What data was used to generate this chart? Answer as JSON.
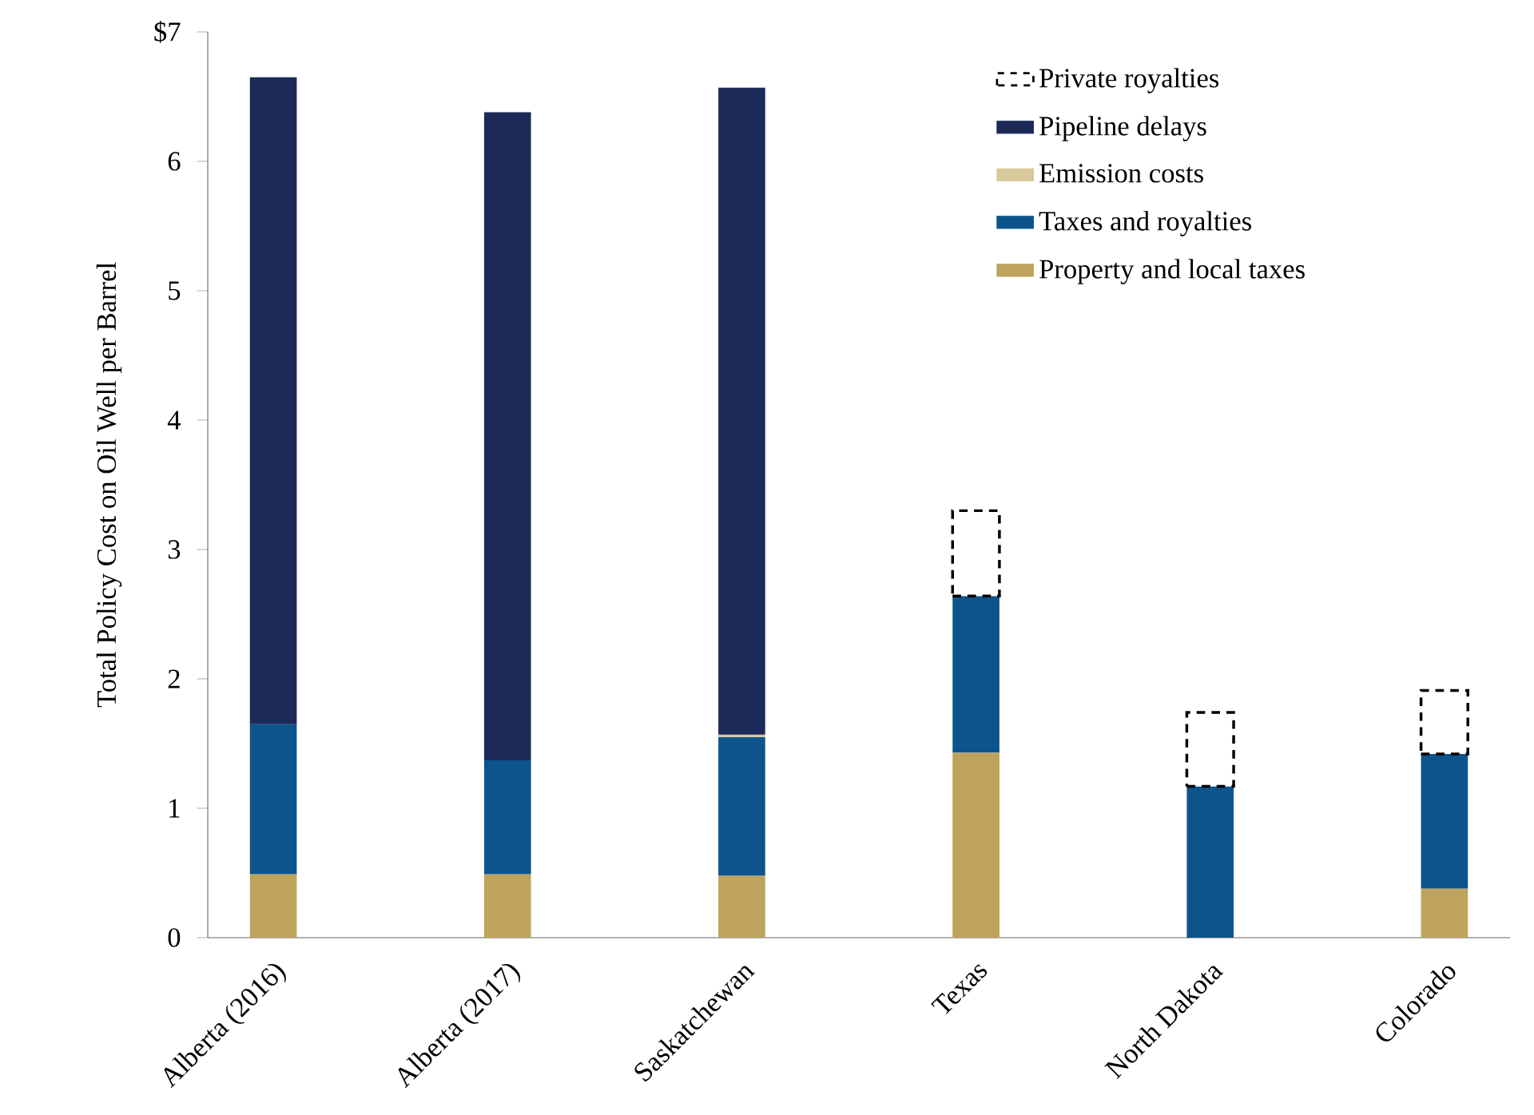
{
  "chart_data": {
    "type": "bar",
    "stacked": true,
    "ylabel": "Total Policy Cost on Oil Well per Barrel",
    "categories": [
      "Alberta (2016)",
      "Alberta (2017)",
      "Saskatchewan",
      "Texas",
      "North Dakota",
      "Colorado"
    ],
    "series": [
      {
        "name": "Property and local taxes",
        "color": "#bea35c",
        "values": [
          0.49,
          0.49,
          0.48,
          1.43,
          null,
          0.38
        ]
      },
      {
        "name": "Taxes and royalties",
        "color": "#0d548c",
        "values": [
          1.16,
          0.88,
          1.07,
          1.21,
          1.17,
          1.04
        ]
      },
      {
        "name": "Emission costs",
        "color": "#d8c99a",
        "values": [
          null,
          null,
          0.02,
          null,
          null,
          null
        ]
      },
      {
        "name": "Pipeline delays",
        "color": "#1b2a58",
        "values": [
          5.0,
          5.01,
          5.0,
          null,
          null,
          null
        ]
      },
      {
        "name": "Private royalties",
        "color": "#000000",
        "line_style": "dashed",
        "values": [
          null,
          null,
          null,
          0.66,
          0.57,
          0.49
        ]
      }
    ],
    "ylim": [
      0,
      7
    ],
    "yticks": [
      0,
      1,
      2,
      3,
      4,
      5,
      6,
      {
        "value": 7,
        "label": "$7"
      }
    ],
    "grid": false,
    "legend": "top right"
  }
}
